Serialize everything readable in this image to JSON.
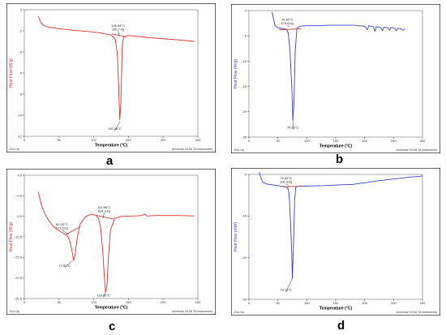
{
  "chart_data": [
    {
      "id": "a",
      "type": "line",
      "letter": "a",
      "xlabel": "Temperature (°C)",
      "ylabel": "Heat Flow (W/g)",
      "footer_left": "Exo Up",
      "footer_right": "Universal V4.5A TA Instruments",
      "xlim": [
        0,
        250
      ],
      "ylim": [
        -12,
        0
      ],
      "xticks": [
        0,
        50,
        100,
        150,
        200,
        250
      ],
      "yticks": [
        0,
        -2,
        -4,
        -6,
        -8,
        -10,
        -12
      ],
      "color": "#e4302b",
      "points": [
        [
          20,
          -0.6
        ],
        [
          24,
          -1.25
        ],
        [
          28,
          -1.5
        ],
        [
          35,
          -1.65
        ],
        [
          50,
          -1.8
        ],
        [
          70,
          -1.95
        ],
        [
          90,
          -2.05
        ],
        [
          110,
          -2.2
        ],
        [
          125,
          -2.4
        ],
        [
          131,
          -2.8
        ],
        [
          134,
          -4.2
        ],
        [
          136,
          -7.5
        ],
        [
          137.5,
          -10.4
        ],
        [
          139,
          -9.0
        ],
        [
          140,
          -6.5
        ],
        [
          141,
          -3.5
        ],
        [
          143,
          -2.6
        ],
        [
          148,
          -2.45
        ],
        [
          160,
          -2.5
        ],
        [
          180,
          -2.65
        ],
        [
          200,
          -2.75
        ],
        [
          220,
          -2.85
        ],
        [
          245,
          -3.0
        ]
      ],
      "baseline": [
        [
          126,
          -2.3
        ],
        [
          146,
          -2.55
        ]
      ],
      "annotations": [
        {
          "lines": [
            "136.84°C",
            "165.7J/g"
          ],
          "x": 135,
          "y": -1.6,
          "tx": 137,
          "ty": -2.5
        },
        {
          "lines": [
            "140.16°C"
          ],
          "x": 130,
          "y": -11.4,
          "tx": 138,
          "ty": -10.6
        }
      ]
    },
    {
      "id": "b",
      "type": "line",
      "letter": "b",
      "xlabel": "Temperature (°C)",
      "ylabel": "Heat Flow (W/g)",
      "footer_left": "Exo Up",
      "footer_right": "Universal V4.5A TA Instruments",
      "xlim": [
        0,
        300
      ],
      "ylim": [
        -25,
        0
      ],
      "xticks": [
        0,
        50,
        100,
        150,
        200,
        250,
        300
      ],
      "yticks": [
        0,
        -5,
        -10,
        -15,
        -20,
        -25
      ],
      "color": "#3b3fd1",
      "points": [
        [
          40,
          -0.3
        ],
        [
          45,
          -3.0
        ],
        [
          50,
          -3.4
        ],
        [
          55,
          -3.5
        ],
        [
          60,
          -3.6
        ],
        [
          65,
          -3.7
        ],
        [
          68,
          -4.5
        ],
        [
          71,
          -8.0
        ],
        [
          74,
          -15.0
        ],
        [
          76,
          -21.8
        ],
        [
          78,
          -17.5
        ],
        [
          80,
          -8.0
        ],
        [
          83,
          -3.5
        ],
        [
          88,
          -3.1
        ],
        [
          100,
          -3.0
        ],
        [
          120,
          -3.0
        ],
        [
          140,
          -2.9
        ],
        [
          160,
          -2.9
        ],
        [
          180,
          -2.9
        ],
        [
          190,
          -3.0
        ],
        [
          200,
          -3.1
        ],
        [
          205,
          -3.8
        ],
        [
          207,
          -3.0
        ],
        [
          215,
          -3.2
        ],
        [
          218,
          -4.1
        ],
        [
          220,
          -3.2
        ],
        [
          228,
          -3.4
        ],
        [
          231,
          -4.0
        ],
        [
          233,
          -3.3
        ],
        [
          240,
          -3.4
        ],
        [
          243,
          -3.9
        ],
        [
          245,
          -3.4
        ],
        [
          252,
          -3.5
        ],
        [
          255,
          -4.0
        ],
        [
          257,
          -3.5
        ],
        [
          263,
          -3.6
        ],
        [
          266,
          -3.9
        ],
        [
          270,
          -3.6
        ]
      ],
      "baseline": [
        [
          52,
          -3.8
        ],
        [
          90,
          -3.6
        ]
      ],
      "annotations": [
        {
          "lines": [
            "70.60°C",
            "473.0J/g"
          ],
          "x": 66,
          "y": -2.0,
          "tx": 70,
          "ty": -3.2
        },
        {
          "lines": [
            "76.63°C"
          ],
          "x": 76,
          "y": -23.3,
          "tx": 76,
          "ty": -22.0
        }
      ]
    },
    {
      "id": "c",
      "type": "line",
      "letter": "c",
      "xlabel": "Temperature (°C)",
      "ylabel": "Heat Flow (W/g)",
      "footer_left": "Exo Up",
      "footer_right": "Universal V4.5A TA Instruments",
      "xlim": [
        0,
        250
      ],
      "ylim": [
        -25.5,
        4.5
      ],
      "xticks": [
        0,
        50,
        100,
        150,
        200,
        250
      ],
      "yticks": [
        4.5,
        -0.5,
        -5.5,
        -10.5,
        -15.5,
        -20.5,
        -25.5
      ],
      "color": "#e4302b",
      "points": [
        [
          20,
          0.5
        ],
        [
          25,
          -3.0
        ],
        [
          30,
          -5.0
        ],
        [
          35,
          -6.5
        ],
        [
          42,
          -8.0
        ],
        [
          50,
          -9.0
        ],
        [
          58,
          -9.8
        ],
        [
          63,
          -10.5
        ],
        [
          66,
          -11.8
        ],
        [
          69,
          -14.2
        ],
        [
          71,
          -16.2
        ],
        [
          73,
          -15.0
        ],
        [
          76,
          -11.0
        ],
        [
          80,
          -7.5
        ],
        [
          88,
          -5.6
        ],
        [
          96,
          -5.0
        ],
        [
          103,
          -5.2
        ],
        [
          107,
          -6.0
        ],
        [
          110,
          -8.5
        ],
        [
          113,
          -14.0
        ],
        [
          115,
          -19.5
        ],
        [
          117,
          -24.0
        ],
        [
          119,
          -22.5
        ],
        [
          121,
          -16.0
        ],
        [
          124,
          -9.0
        ],
        [
          130,
          -6.0
        ],
        [
          140,
          -5.5
        ],
        [
          160,
          -5.4
        ],
        [
          170,
          -5.3
        ],
        [
          174,
          -4.9
        ],
        [
          176,
          -5.4
        ],
        [
          190,
          -5.3
        ],
        [
          220,
          -5.3
        ],
        [
          245,
          -5.4
        ]
      ],
      "baseline": [
        [
          60,
          -9.9
        ],
        [
          81,
          -8.0
        ]
      ],
      "baseline2": [
        [
          104,
          -5.3
        ],
        [
          128,
          -6.1
        ]
      ],
      "annotations": [
        {
          "lines": [
            "60.93°C",
            "171.6J/g"
          ],
          "x": 54,
          "y": -7.7,
          "tx": 64,
          "ty": -9.9
        },
        {
          "lines": [
            "72.82°C"
          ],
          "x": 58,
          "y": -17.8,
          "tx": 70,
          "ty": -16.2
        },
        {
          "lines": [
            "111.86°C",
            "814.3J/g"
          ],
          "x": 115,
          "y": -3.6,
          "tx": 113,
          "ty": -6.0
        },
        {
          "lines": [
            "118.03°C"
          ],
          "x": 114,
          "y": -25.0,
          "tx": 117,
          "ty": -24.1
        }
      ]
    },
    {
      "id": "d",
      "type": "line",
      "letter": "d",
      "xlabel": "Temperature (°C)",
      "ylabel": "Heat Flow (mW)",
      "footer_left": "Exo Up",
      "footer_right": "Universal V4.5A TA Instruments",
      "xlim": [
        0,
        300
      ],
      "ylim": [
        -30,
        0
      ],
      "xticks": [
        0,
        50,
        100,
        150,
        200,
        250,
        300
      ],
      "yticks": [
        0,
        -10,
        -20,
        -30
      ],
      "color": "#3b3fd1",
      "points": [
        [
          18,
          0.5
        ],
        [
          20,
          -0.6
        ],
        [
          24,
          -1.8
        ],
        [
          30,
          -2.3
        ],
        [
          40,
          -2.5
        ],
        [
          50,
          -2.7
        ],
        [
          60,
          -2.9
        ],
        [
          65,
          -3.0
        ],
        [
          68,
          -3.5
        ],
        [
          70,
          -6.0
        ],
        [
          72,
          -12.0
        ],
        [
          74,
          -19.0
        ],
        [
          75,
          -25.0
        ],
        [
          77,
          -17.0
        ],
        [
          79,
          -6.0
        ],
        [
          81,
          -3.0
        ],
        [
          88,
          -2.8
        ],
        [
          100,
          -2.8
        ],
        [
          130,
          -2.7
        ],
        [
          160,
          -2.5
        ],
        [
          180,
          -2.4
        ],
        [
          200,
          -2.0
        ],
        [
          220,
          -1.6
        ],
        [
          250,
          -1.1
        ],
        [
          275,
          -0.7
        ],
        [
          300,
          -0.4
        ]
      ],
      "baseline": [
        [
          60,
          -3.0
        ],
        [
          92,
          -2.8
        ]
      ],
      "annotations": [
        {
          "lines": [
            "70.52°C",
            "106.3J/g"
          ],
          "x": 64,
          "y": -1.2,
          "tx": 70,
          "ty": -2.9
        },
        {
          "lines": [
            "73.11°C"
          ],
          "x": 64,
          "y": -28.0,
          "tx": 75,
          "ty": -25.0
        }
      ]
    }
  ]
}
